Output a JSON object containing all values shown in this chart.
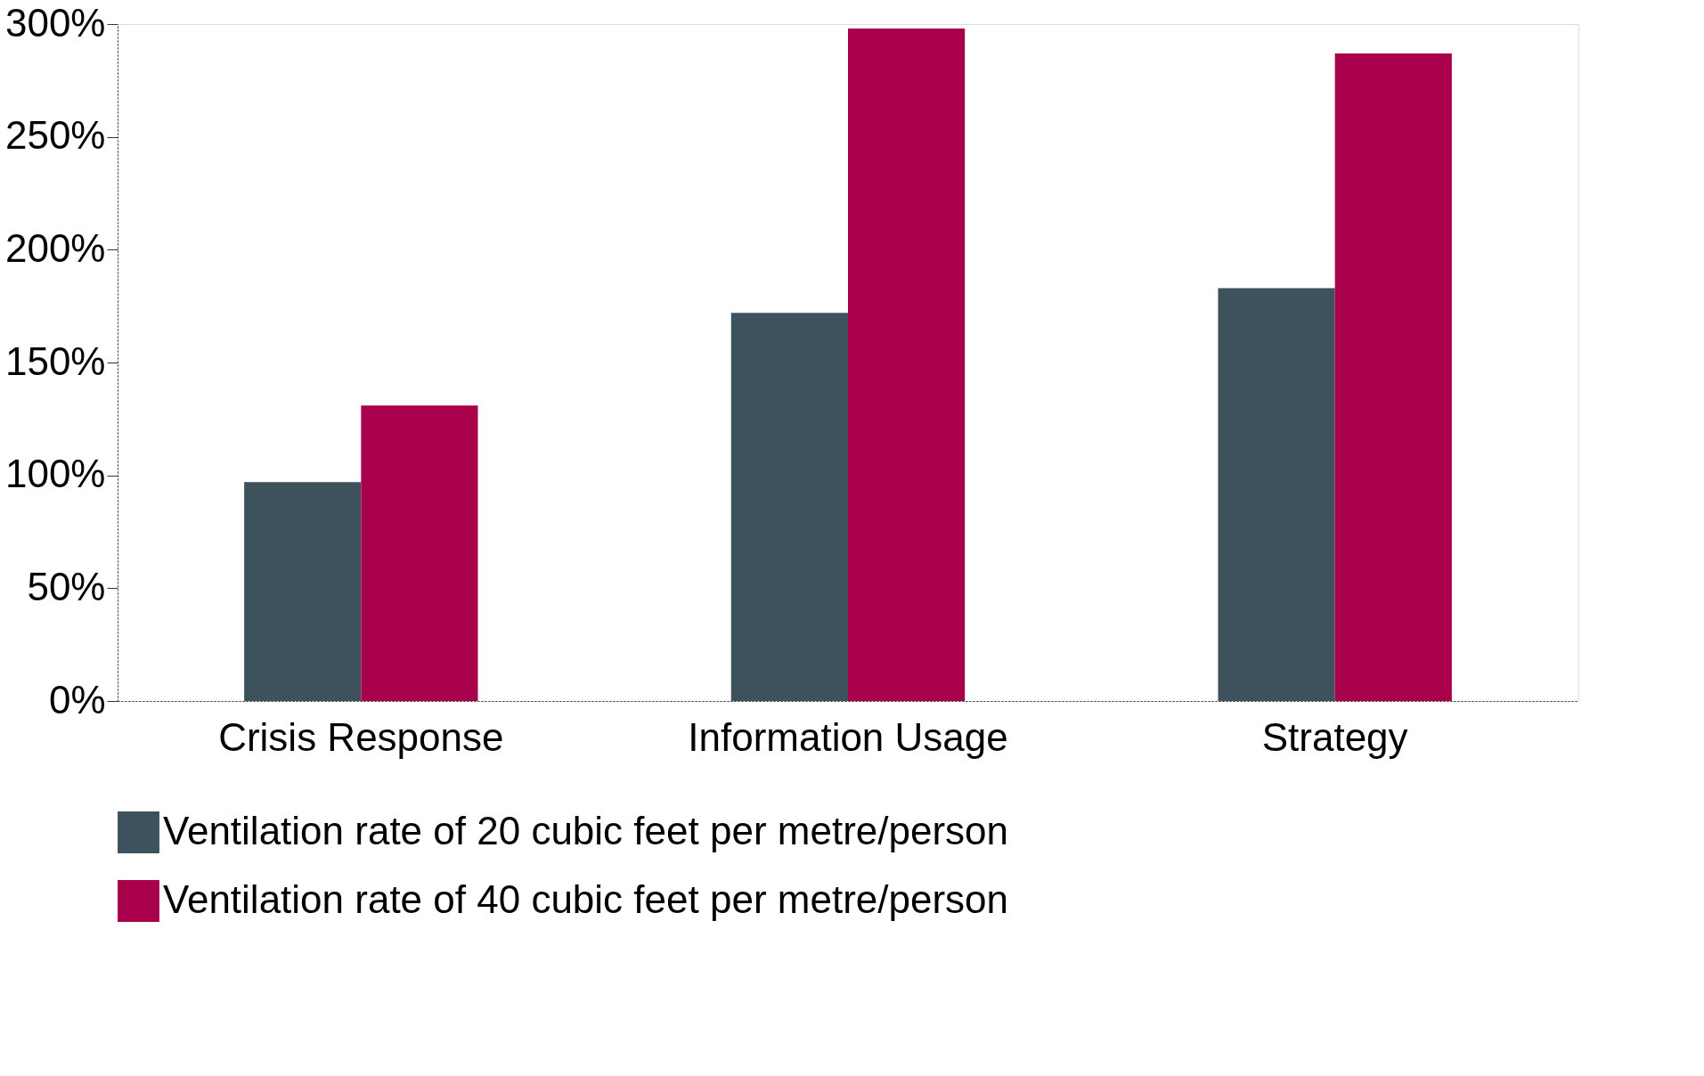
{
  "chart_data": {
    "type": "bar",
    "categories": [
      "Crisis Response",
      "Information Usage",
      "Strategy"
    ],
    "series": [
      {
        "name": "Ventilation rate of 20 cubic feet per metre/person",
        "color": "#3d525c",
        "values": [
          97,
          172,
          183
        ]
      },
      {
        "name": "Ventilation rate of 40 cubic feet per metre/person",
        "color": "#a8004a",
        "values": [
          131,
          298,
          287
        ]
      }
    ],
    "ylim": [
      0,
      300
    ],
    "yticks": [
      {
        "value": 0,
        "label": "0%"
      },
      {
        "value": 50,
        "label": "50%"
      },
      {
        "value": 100,
        "label": "100%"
      },
      {
        "value": 150,
        "label": "150%"
      },
      {
        "value": 200,
        "label": "200%"
      },
      {
        "value": 250,
        "label": "250%"
      },
      {
        "value": 300,
        "label": "300%"
      }
    ],
    "grid": false,
    "legend": "bottom"
  }
}
